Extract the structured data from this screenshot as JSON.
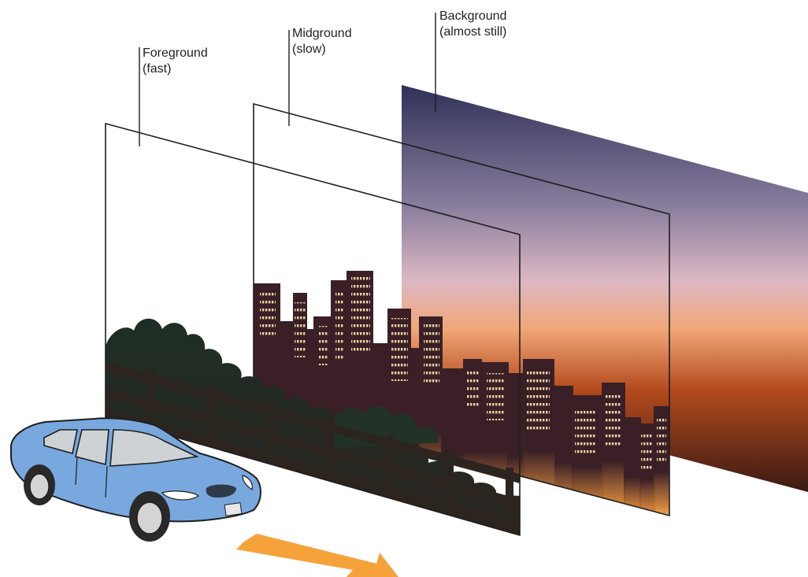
{
  "layers": [
    {
      "id": "foreground",
      "label": "Foreground",
      "speed": "(fast)"
    },
    {
      "id": "midground",
      "label": "Midground",
      "speed": "(slow)"
    },
    {
      "id": "background",
      "label": "Background",
      "speed": "(almost still)"
    }
  ],
  "colors": {
    "sky_top": "#2f3158",
    "sky_mid": "#c9a9c4",
    "sky_glow": "#f0a070",
    "sky_horizon": "#b24a1c",
    "sky_bottom": "#3a1a14",
    "city": "#3a2026",
    "city_window": "#f4ddb0",
    "foliage": "#223226",
    "fence": "#2c241f",
    "car_body": "#78a8de",
    "car_window": "#cfd2d4",
    "arrow": "#f6a23a",
    "frame": "#1e1e1e"
  },
  "icons": [
    "car-icon",
    "motion-arrow-icon"
  ]
}
